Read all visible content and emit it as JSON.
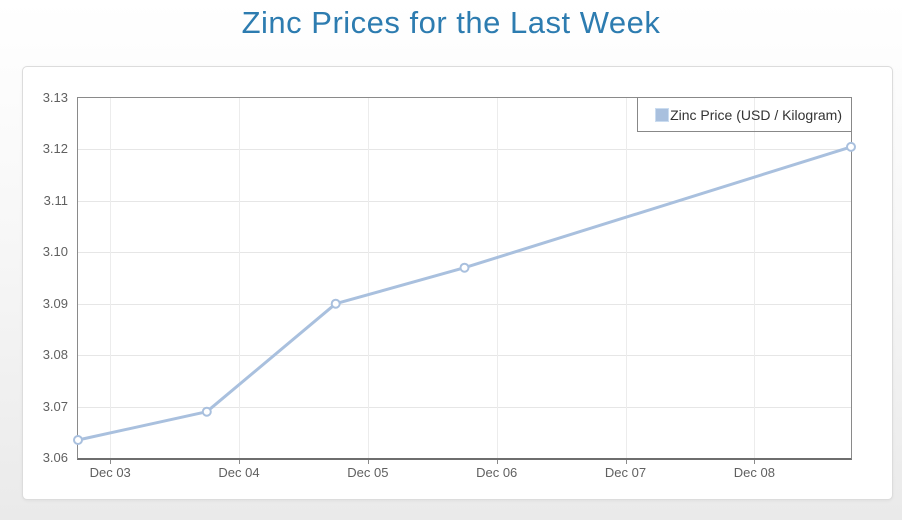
{
  "page": {
    "title": "Zinc Prices for the Last Week"
  },
  "legend": {
    "label": "Zinc Price (USD / Kilogram)"
  },
  "chart_data": {
    "type": "line",
    "title": "Zinc Prices for the Last Week",
    "xlabel": "",
    "ylabel": "",
    "legend_position": "top-right",
    "grid": true,
    "xlim": [
      0,
      6
    ],
    "ylim": [
      3.06,
      3.13
    ],
    "series": [
      {
        "name": "Zinc Price (USD / Kilogram)",
        "points": [
          {
            "x": 0,
            "value": 3.0635
          },
          {
            "x": 1,
            "value": 3.069
          },
          {
            "x": 2,
            "value": 3.09
          },
          {
            "x": 3,
            "value": 3.097
          },
          {
            "x": 6,
            "value": 3.1205
          }
        ]
      }
    ],
    "x_ticks": [
      {
        "pos": 0.25,
        "label": "Dec 03"
      },
      {
        "pos": 1.25,
        "label": "Dec 04"
      },
      {
        "pos": 2.25,
        "label": "Dec 05"
      },
      {
        "pos": 3.25,
        "label": "Dec 06"
      },
      {
        "pos": 4.25,
        "label": "Dec 07"
      },
      {
        "pos": 5.25,
        "label": "Dec 08"
      }
    ],
    "y_ticks": [
      {
        "value": 3.06,
        "label": "3.06"
      },
      {
        "value": 3.07,
        "label": "3.07"
      },
      {
        "value": 3.08,
        "label": "3.08"
      },
      {
        "value": 3.09,
        "label": "3.09"
      },
      {
        "value": 3.1,
        "label": "3.10"
      },
      {
        "value": 3.11,
        "label": "3.11"
      },
      {
        "value": 3.12,
        "label": "3.12"
      },
      {
        "value": 3.13,
        "label": "3.13"
      }
    ],
    "colors": {
      "title": "#2d7cb0",
      "line": "#a9c0de",
      "marker_fill": "#ffffff",
      "grid_h": "#e6e6e6",
      "grid_v": "#ececec",
      "axis_border": "#8a8a8a",
      "axis_labels": "#606060",
      "legend_border": "#888888",
      "legend_text": "#333333",
      "panel_border": "#dcdcdc",
      "panel_bg": "#ffffff"
    }
  }
}
